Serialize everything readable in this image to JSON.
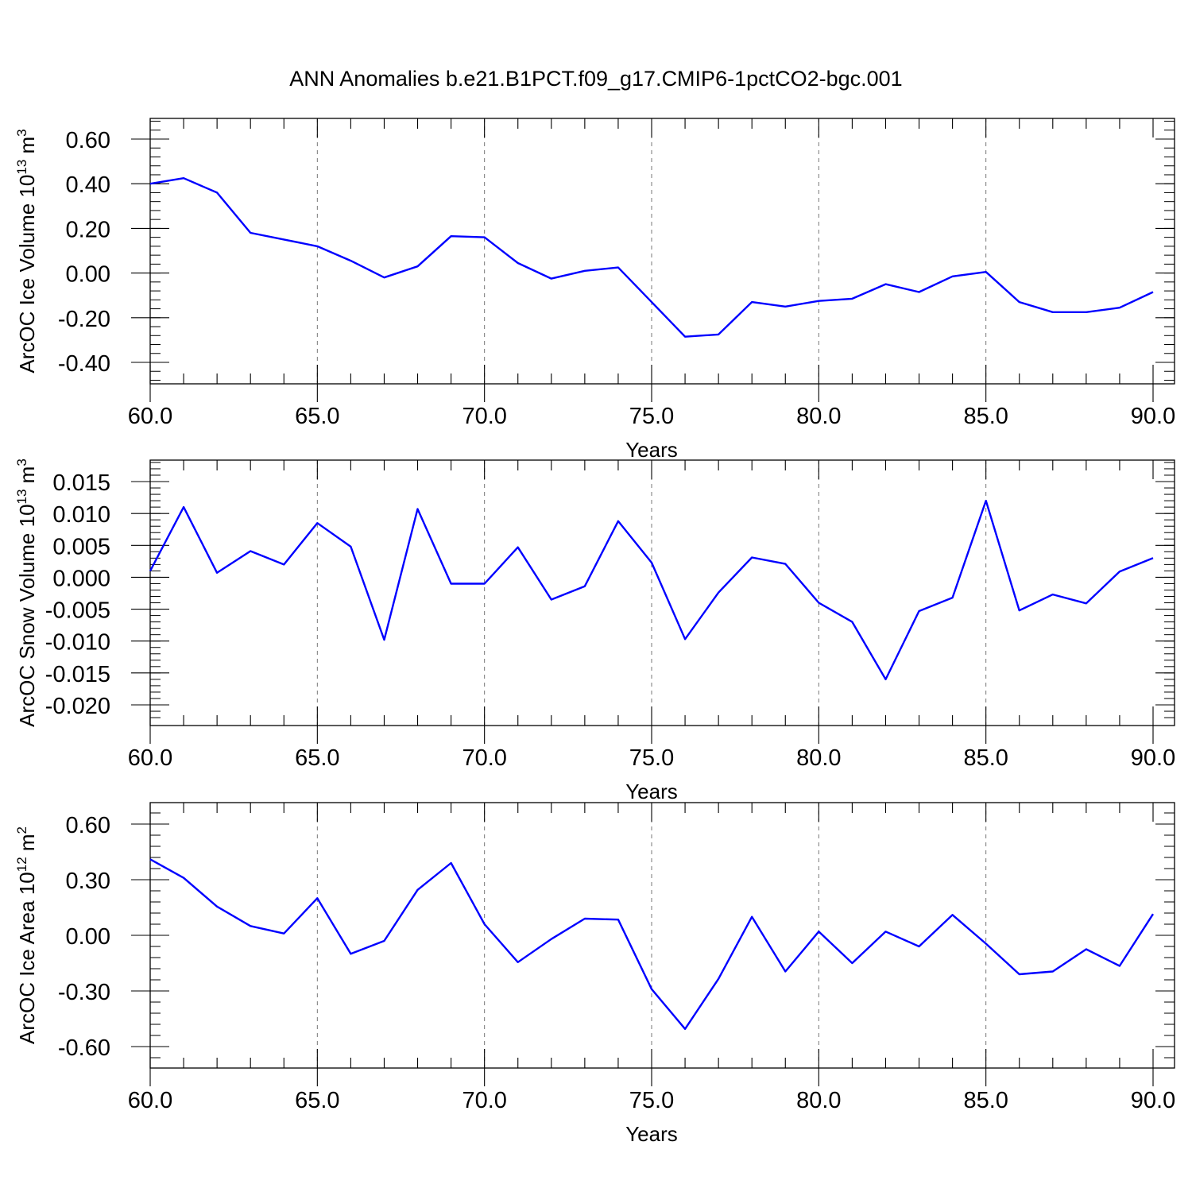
{
  "title": "ANN Anomalies b.e21.B1PCT.f09_g17.CMIP6-1pctCO2-bgc.001",
  "colors": {
    "line": "#0000ff",
    "axis": "#000000",
    "grid": "#777777"
  },
  "chart_data": [
    {
      "type": "line",
      "xlabel": "Years",
      "ylabel": {
        "prefix": "ArcOC Ice Volume 10",
        "exp": "13",
        "unit": " m",
        "unit_exp": "3"
      },
      "xlim": [
        60,
        90
      ],
      "ylim": [
        -0.4,
        0.6
      ],
      "xticks": [
        60.0,
        65.0,
        70.0,
        75.0,
        80.0,
        85.0,
        90.0
      ],
      "xtick_labels": [
        "60.0",
        "65.0",
        "70.0",
        "75.0",
        "80.0",
        "85.0",
        "90.0"
      ],
      "yticks": [
        -0.4,
        -0.2,
        0.0,
        0.2,
        0.4,
        0.6
      ],
      "ytick_labels": [
        "-0.40",
        "-0.20",
        "0.00",
        "0.20",
        "0.40",
        "0.60"
      ],
      "grid": "vertical dashed at major x ticks",
      "series": [
        {
          "x": [
            60,
            61,
            62,
            63,
            64,
            65,
            66,
            67,
            68,
            69,
            70,
            71,
            72,
            73,
            74,
            75,
            76,
            77,
            78,
            79,
            80,
            81,
            82,
            83,
            84,
            85,
            86,
            87,
            88,
            89,
            90
          ],
          "values": [
            0.4,
            0.425,
            0.36,
            0.18,
            0.15,
            0.12,
            0.055,
            -0.02,
            0.03,
            0.165,
            0.16,
            0.045,
            -0.025,
            0.01,
            0.025,
            -0.13,
            -0.285,
            -0.275,
            -0.13,
            -0.15,
            -0.125,
            -0.115,
            -0.05,
            -0.085,
            -0.015,
            0.005,
            -0.13,
            -0.175,
            -0.175,
            -0.155,
            -0.085
          ]
        }
      ]
    },
    {
      "type": "line",
      "xlabel": "Years",
      "ylabel": {
        "prefix": "ArcOC Snow Volume 10",
        "exp": "13",
        "unit": " m",
        "unit_exp": "3"
      },
      "xlim": [
        60,
        90
      ],
      "ylim": [
        -0.02,
        0.015
      ],
      "xticks": [
        60.0,
        65.0,
        70.0,
        75.0,
        80.0,
        85.0,
        90.0
      ],
      "xtick_labels": [
        "60.0",
        "65.0",
        "70.0",
        "75.0",
        "80.0",
        "85.0",
        "90.0"
      ],
      "yticks": [
        -0.02,
        -0.015,
        -0.01,
        -0.005,
        0.0,
        0.005,
        0.01,
        0.015
      ],
      "ytick_labels": [
        "-0.020",
        "-0.015",
        "-0.010",
        "-0.005",
        "0.000",
        "0.005",
        "0.010",
        "0.015"
      ],
      "grid": "vertical dashed at major x ticks",
      "series": [
        {
          "x": [
            60,
            61,
            62,
            63,
            64,
            65,
            66,
            67,
            68,
            69,
            70,
            71,
            72,
            73,
            74,
            75,
            76,
            77,
            78,
            79,
            80,
            81,
            82,
            83,
            84,
            85,
            86,
            87,
            88,
            89,
            90
          ],
          "values": [
            0.001,
            0.011,
            0.0007,
            0.0041,
            0.002,
            0.0085,
            0.0048,
            -0.0098,
            0.0107,
            -0.001,
            -0.001,
            0.0047,
            -0.0035,
            -0.0014,
            0.0088,
            0.0023,
            -0.0097,
            -0.0024,
            0.0031,
            0.0021,
            -0.004,
            -0.007,
            -0.016,
            -0.0053,
            -0.0032,
            0.012,
            -0.0052,
            -0.0027,
            -0.0041,
            0.0009,
            0.003
          ]
        }
      ]
    },
    {
      "type": "line",
      "xlabel": "Years",
      "ylabel": {
        "prefix": "ArcOC Ice Area 10",
        "exp": "12",
        "unit": " m",
        "unit_exp": "2"
      },
      "xlim": [
        60,
        90
      ],
      "ylim": [
        -0.6,
        0.6
      ],
      "xticks": [
        60.0,
        65.0,
        70.0,
        75.0,
        80.0,
        85.0,
        90.0
      ],
      "xtick_labels": [
        "60.0",
        "65.0",
        "70.0",
        "75.0",
        "80.0",
        "85.0",
        "90.0"
      ],
      "yticks": [
        -0.6,
        -0.3,
        0.0,
        0.3,
        0.6
      ],
      "ytick_labels": [
        "-0.60",
        "-0.30",
        "0.00",
        "0.30",
        "0.60"
      ],
      "grid": "vertical dashed at major x ticks",
      "series": [
        {
          "x": [
            60,
            61,
            62,
            63,
            64,
            65,
            66,
            67,
            68,
            69,
            70,
            71,
            72,
            73,
            74,
            75,
            76,
            77,
            78,
            79,
            80,
            81,
            82,
            83,
            84,
            85,
            86,
            87,
            88,
            89,
            90
          ],
          "values": [
            0.41,
            0.31,
            0.155,
            0.05,
            0.01,
            0.2,
            -0.1,
            -0.03,
            0.245,
            0.39,
            0.06,
            -0.145,
            -0.02,
            0.09,
            0.085,
            -0.29,
            -0.505,
            -0.235,
            0.1,
            -0.195,
            0.02,
            -0.15,
            0.02,
            -0.06,
            0.11,
            -0.045,
            -0.21,
            -0.195,
            -0.075,
            -0.165,
            0.115
          ]
        }
      ]
    }
  ]
}
